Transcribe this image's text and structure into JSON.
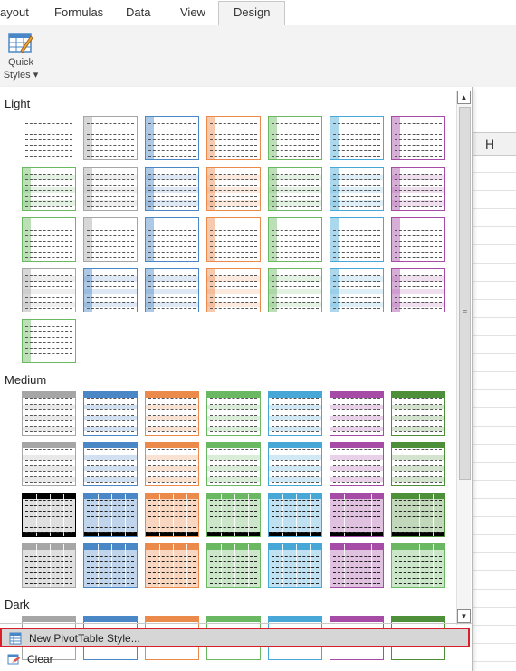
{
  "ribbon_tabs": [
    "ayout",
    "Formulas",
    "Data",
    "View",
    "Design"
  ],
  "active_tab": "Design",
  "quick_styles": {
    "line1": "Quick",
    "line2": "Styles ▾"
  },
  "sections": {
    "light": "Light",
    "medium": "Medium",
    "dark": "Dark"
  },
  "column_header": "H",
  "menu": {
    "new_style": "New PivotTable Style...",
    "clear": "Clear"
  },
  "scroll": {
    "up": "▲",
    "down": "▼",
    "grip": "≡"
  },
  "colors": {
    "gray": "#a6a6a6",
    "blue": "#4a87c6",
    "orange": "#ec8a4b",
    "green": "#6bb862",
    "teal": "#47a8d8",
    "purple": "#a64ca6",
    "dkgreen": "#4e8f3a",
    "black": "#000000",
    "highlight": "#d9202a"
  },
  "palette": [
    "gray",
    "blue",
    "orange",
    "green",
    "teal",
    "purple",
    "green"
  ],
  "swatch_rows": {
    "light": [
      [
        "none",
        "gray",
        "blue",
        "orange",
        "green",
        "teal",
        "purple"
      ],
      [
        "green",
        "gray",
        "blue",
        "orange",
        "green",
        "teal",
        "purple"
      ],
      [
        "green",
        "gray",
        "blue",
        "orange",
        "green",
        "teal",
        "purple"
      ],
      [
        "gray",
        "blue",
        "blue",
        "orange",
        "green",
        "teal",
        "purple"
      ],
      [
        "green"
      ]
    ],
    "medium": [
      [
        "gray",
        "blue",
        "orange",
        "green",
        "teal",
        "purple",
        "dkgreen"
      ],
      [
        "gray",
        "blue",
        "orange",
        "green",
        "teal",
        "purple",
        "dkgreen"
      ],
      [
        "black",
        "blue",
        "orange",
        "green",
        "teal",
        "purple",
        "dkgreen"
      ],
      [
        "gray",
        "blue",
        "orange",
        "green",
        "teal",
        "purple",
        "green"
      ]
    ],
    "dark": [
      [
        "gray",
        "blue",
        "orange",
        "green",
        "teal",
        "purple",
        "dkgreen"
      ]
    ]
  }
}
